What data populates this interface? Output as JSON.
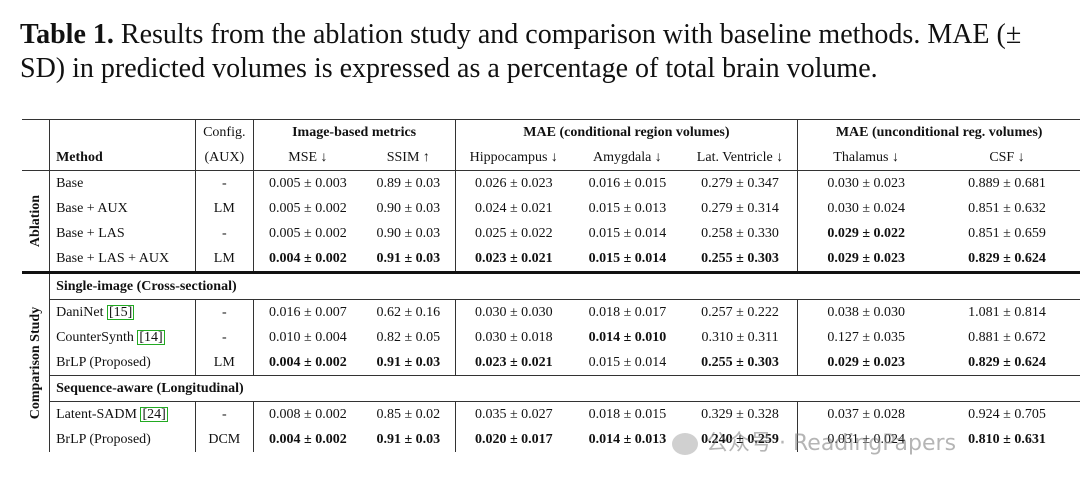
{
  "caption": {
    "label": "Table 1.",
    "text": " Results from the ablation study and comparison with baseline methods. MAE (± SD) in predicted volumes is expressed as a percentage of total brain volume."
  },
  "header": {
    "config_top": "Config.",
    "config_bottom": "(AUX)",
    "method": "Method",
    "group_image": "Image-based metrics",
    "group_cond": "MAE (conditional region volumes)",
    "group_uncond": "MAE (unconditional reg. volumes)",
    "cols": [
      "MSE ↓",
      "SSIM ↑",
      "Hippocampus ↓",
      "Amygdala ↓",
      "Lat. Ventricle ↓",
      "Thalamus ↓",
      "CSF ↓"
    ]
  },
  "sections": {
    "ablation": "Ablation",
    "comparison": "Comparison Study",
    "single": "Single-image (Cross-sectional)",
    "sequence": "Sequence-aware (Longitudinal)"
  },
  "rows": {
    "base": {
      "method": "Base",
      "aux": "-",
      "v": [
        "0.005 ± 0.003",
        "0.89 ± 0.03",
        "0.026 ± 0.023",
        "0.016 ± 0.015",
        "0.279 ± 0.347",
        "0.030 ± 0.023",
        "0.889 ± 0.681"
      ]
    },
    "base_aux": {
      "method": "Base + AUX",
      "aux": "LM",
      "v": [
        "0.005 ± 0.002",
        "0.90 ± 0.03",
        "0.024 ± 0.021",
        "0.015 ± 0.013",
        "0.279 ± 0.314",
        "0.030 ± 0.024",
        "0.851 ± 0.632"
      ]
    },
    "base_las": {
      "method": "Base + LAS",
      "aux": "-",
      "v": [
        "0.005 ± 0.002",
        "0.90 ± 0.03",
        "0.025 ± 0.022",
        "0.015 ± 0.014",
        "0.258 ± 0.330",
        "0.029 ± 0.022",
        "0.851 ± 0.659"
      ]
    },
    "base_las_aux": {
      "method": "Base + LAS + AUX",
      "aux": "LM",
      "v": [
        "0.004 ± 0.002",
        "0.91 ± 0.03",
        "0.023 ± 0.021",
        "0.015 ± 0.014",
        "0.255 ± 0.303",
        "0.029 ± 0.023",
        "0.829 ± 0.624"
      ]
    },
    "daninet": {
      "method": "DaniNet",
      "cite": "[15]",
      "aux": "-",
      "v": [
        "0.016 ± 0.007",
        "0.62 ± 0.16",
        "0.030 ± 0.030",
        "0.018 ± 0.017",
        "0.257 ± 0.222",
        "0.038 ± 0.030",
        "1.081 ± 0.814"
      ]
    },
    "countersynth": {
      "method": "CounterSynth",
      "cite": "[14]",
      "aux": "-",
      "v": [
        "0.010 ± 0.004",
        "0.82 ± 0.05",
        "0.030 ± 0.018",
        "0.014 ± 0.010",
        "0.310 ± 0.311",
        "0.127 ± 0.035",
        "0.881 ± 0.672"
      ]
    },
    "brlp_lm": {
      "method": "BrLP (Proposed)",
      "aux": "LM",
      "v": [
        "0.004 ± 0.002",
        "0.91 ± 0.03",
        "0.023 ± 0.021",
        "0.015 ± 0.014",
        "0.255 ± 0.303",
        "0.029 ± 0.023",
        "0.829 ± 0.624"
      ]
    },
    "latent_sadm": {
      "method": "Latent-SADM",
      "cite": "[24]",
      "aux": "-",
      "v": [
        "0.008 ± 0.002",
        "0.85 ± 0.02",
        "0.035 ± 0.027",
        "0.018 ± 0.015",
        "0.329 ± 0.328",
        "0.037 ± 0.028",
        "0.924 ± 0.705"
      ]
    },
    "brlp_dcm": {
      "method": "BrLP (Proposed)",
      "aux": "DCM",
      "v": [
        "0.004 ± 0.002",
        "0.91 ± 0.03",
        "0.020 ± 0.017",
        "0.014 ± 0.013",
        "0.240 ± 0.259",
        "0.031 ± 0.024",
        "0.810 ± 0.631"
      ]
    }
  },
  "watermark": "公众号 · ReadingPapers"
}
